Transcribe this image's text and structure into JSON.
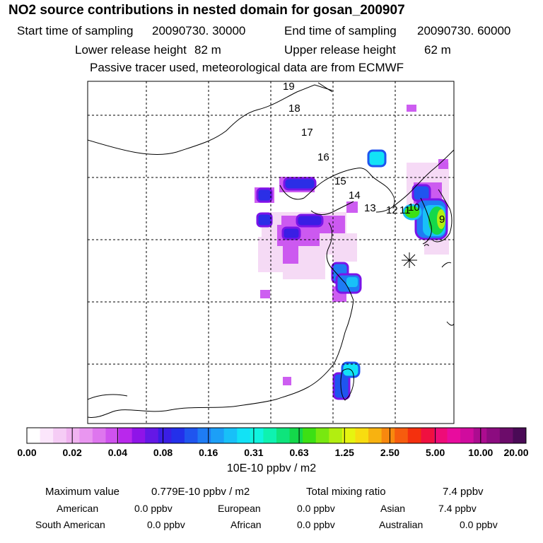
{
  "header": {
    "title": "NO2 source contributions in nested domain for gosan_200907",
    "start_label": "Start time of sampling",
    "start_value": "20090730. 30000",
    "end_label": "End time of sampling",
    "end_value": "20090730. 60000",
    "lower_label": "Lower release height",
    "lower_value": "82 m",
    "upper_label": "Upper release height",
    "upper_value": "62 m",
    "note": "Passive tracer used, meteorological data are from ECMWF"
  },
  "chart_data": {
    "type": "heatmap",
    "title": "NO2 source contributions in nested domain for gosan_200907",
    "trajectory_labels": [
      "19",
      "18",
      "17",
      "16",
      "15",
      "14",
      "13",
      "12",
      "11",
      "10",
      "9"
    ],
    "grid": true,
    "colorbar": {
      "ticks": [
        "0.00",
        "0.02",
        "0.04",
        "0.08",
        "0.16",
        "0.31",
        "0.63",
        "1.25",
        "2.50",
        "5.00",
        "10.00",
        "20.00"
      ],
      "colors": [
        "#ffffff",
        "#fbe6fb",
        "#f5ccf5",
        "#f0b3f0",
        "#e996f0",
        "#de76ee",
        "#cf52ee",
        "#b928ec",
        "#8f14e8",
        "#6418e6",
        "#3a1ee4",
        "#2330ea",
        "#1f55ef",
        "#1e7cf4",
        "#1c9ff7",
        "#18c0f8",
        "#12e2f6",
        "#10f4df",
        "#0ef2b0",
        "#0ee47c",
        "#14d84a",
        "#3ce014",
        "#78e810",
        "#b2ee10",
        "#e6f410",
        "#f8dc10",
        "#f8b210",
        "#f8880e",
        "#f65c0e",
        "#f4300e",
        "#f01040",
        "#ee0c78",
        "#e80c9e",
        "#d00c9e",
        "#ac0c90",
        "#8c0c80",
        "#6c0c6a",
        "#4a0a56"
      ],
      "unit": "10E-10 ppbv / m2"
    }
  },
  "footer": {
    "max_label": "Maximum value",
    "max_value": "0.779E-10 ppbv / m2",
    "total_label": "Total mixing ratio",
    "total_value": "7.4 ppbv",
    "regions": [
      {
        "name": "American",
        "value": "0.0 ppbv"
      },
      {
        "name": "European",
        "value": "0.0 ppbv"
      },
      {
        "name": "Asian",
        "value": "7.4 ppbv"
      },
      {
        "name": "South American",
        "value": "0.0 ppbv"
      },
      {
        "name": "African",
        "value": "0.0 ppbv"
      },
      {
        "name": "Australian",
        "value": "0.0 ppbv"
      }
    ]
  }
}
